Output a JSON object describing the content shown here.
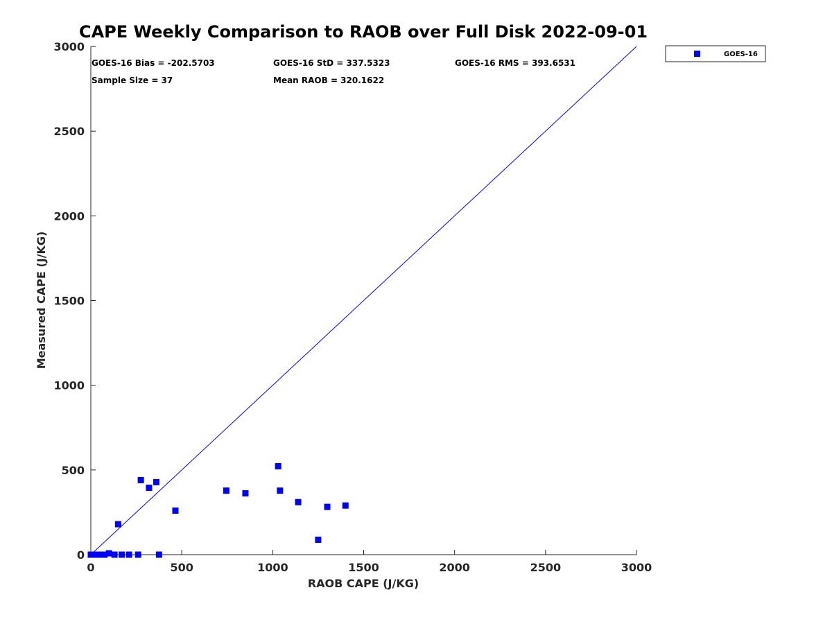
{
  "chart_data": {
    "type": "scatter",
    "title": "CAPE Weekly Comparison to RAOB over Full Disk 2022-09-01",
    "xlabel": "RAOB CAPE (J/KG)",
    "ylabel": "Measured CAPE (J/KG)",
    "xlim": [
      0,
      3000
    ],
    "ylim": [
      0,
      3000
    ],
    "xticks": [
      0,
      500,
      1000,
      1500,
      2000,
      2500,
      3000
    ],
    "yticks": [
      0,
      500,
      1000,
      1500,
      2000,
      2500,
      3000
    ],
    "grid": false,
    "legend_position": "outside-top-right",
    "reference_line": {
      "from": [
        0,
        0
      ],
      "to": [
        3000,
        3000
      ],
      "color": "#0000ff"
    },
    "series": [
      {
        "name": "GOES-16",
        "color": "#0000ff",
        "marker": "square",
        "points": [
          [
            0,
            0
          ],
          [
            8,
            0
          ],
          [
            15,
            0
          ],
          [
            25,
            0
          ],
          [
            35,
            0
          ],
          [
            50,
            0
          ],
          [
            65,
            0
          ],
          [
            75,
            0
          ],
          [
            100,
            8
          ],
          [
            130,
            0
          ],
          [
            150,
            180
          ],
          [
            170,
            0
          ],
          [
            210,
            0
          ],
          [
            260,
            0
          ],
          [
            275,
            440
          ],
          [
            320,
            395
          ],
          [
            360,
            428
          ],
          [
            375,
            0
          ],
          [
            465,
            260
          ],
          [
            745,
            378
          ],
          [
            850,
            362
          ],
          [
            1030,
            522
          ],
          [
            1040,
            378
          ],
          [
            1140,
            310
          ],
          [
            1250,
            88
          ],
          [
            1300,
            282
          ],
          [
            1400,
            290
          ]
        ]
      }
    ],
    "stats": {
      "bias": "GOES-16 Bias = -202.5703",
      "std": "GOES-16 StD = 337.5323",
      "rms": "GOES-16 RMS = 393.6531",
      "sample_size": "Sample Size = 37",
      "mean_raob": "Mean RAOB = 320.1622"
    }
  }
}
